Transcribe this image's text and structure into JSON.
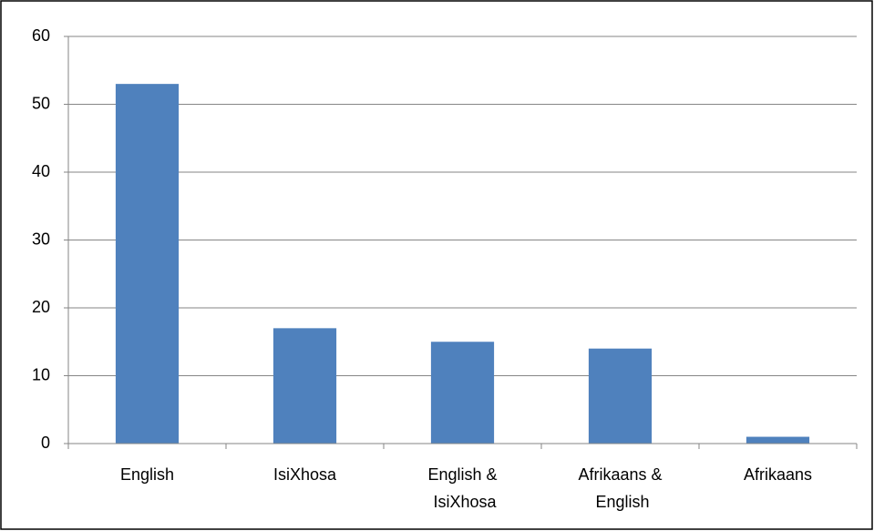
{
  "chart_data": {
    "type": "bar",
    "categories": [
      "English",
      "IsiXhosa",
      "English & IsiXhosa",
      "Afrikaans & English",
      "Afrikaans"
    ],
    "values": [
      53,
      17,
      15,
      14,
      1
    ],
    "color": "#4f81bd",
    "ylim": [
      0,
      60
    ],
    "yticks": [
      0,
      10,
      20,
      30,
      40,
      50,
      60
    ],
    "grid": true
  }
}
